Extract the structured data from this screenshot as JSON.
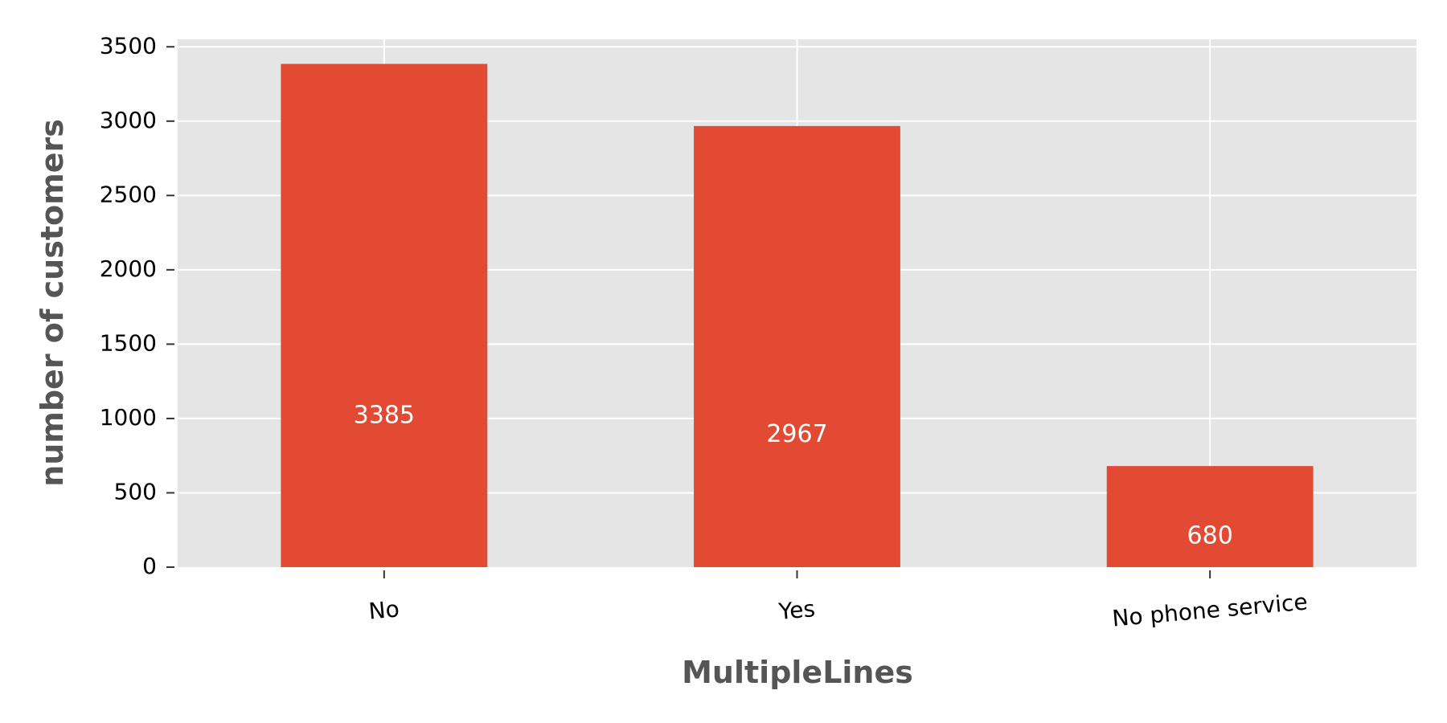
{
  "chart_data": {
    "type": "bar",
    "title": "",
    "xlabel": "MultipleLines",
    "ylabel": "number of customers",
    "categories": [
      "No",
      "Yes",
      "No phone service"
    ],
    "values": [
      3385,
      2967,
      680
    ],
    "bar_labels": [
      "3385",
      "2967",
      "680"
    ],
    "ylim": [
      0,
      3550
    ],
    "yticks": [
      0,
      500,
      1000,
      1500,
      2000,
      2500,
      3000,
      3500
    ],
    "grid": true,
    "legend": "none",
    "colors": {
      "bar": "#E24A33",
      "plot_background": "#E5E5E5",
      "grid": "#FFFFFF",
      "bar_label": "#FFFFFF",
      "axis_title": "#555555"
    }
  }
}
